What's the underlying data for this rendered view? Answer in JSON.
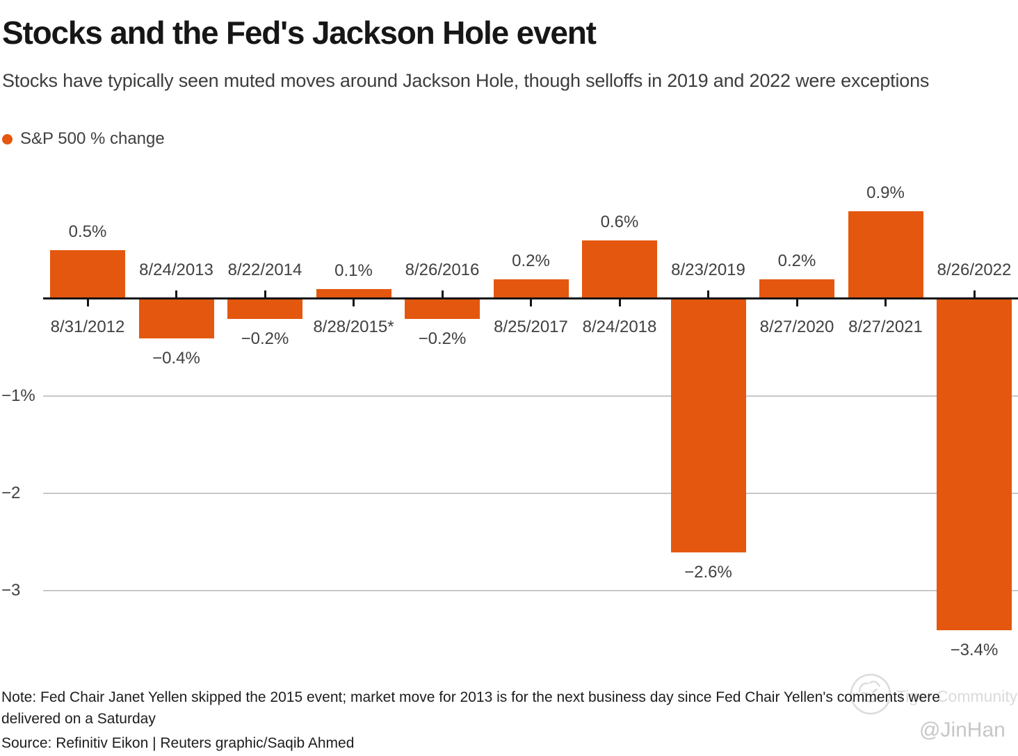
{
  "header": {
    "title": "Stocks and the Fed's Jackson Hole event",
    "subtitle": "Stocks have typically seen muted moves around Jackson Hole, though selloffs in 2019 and 2022 were exceptions"
  },
  "legend": {
    "label": "S&P 500 % change"
  },
  "colors": {
    "bar": "#E4570F",
    "axis": "#141414",
    "gridline": "#C8C8C8",
    "label": "#404040",
    "watermark": "#DBDBDB"
  },
  "chart_data": {
    "type": "bar",
    "title": "Stocks and the Fed's Jackson Hole event",
    "subtitle": "Stocks have typically seen muted moves around Jackson Hole, though selloffs in 2019 and 2022 were exceptions",
    "series_name": "S&P 500 % change",
    "categories": [
      "8/31/2012",
      "8/24/2013",
      "8/22/2014",
      "8/28/2015*",
      "8/26/2016",
      "8/25/2017",
      "8/24/2018",
      "8/23/2019",
      "8/27/2020",
      "8/27/2021",
      "8/26/2022"
    ],
    "values": [
      0.5,
      -0.4,
      -0.2,
      0.1,
      -0.2,
      0.2,
      0.6,
      -2.6,
      0.2,
      0.9,
      -3.4
    ],
    "value_labels": [
      "0.5%",
      "−0.4%",
      "−0.2%",
      "0.1%",
      "−0.2%",
      "0.2%",
      "0.6%",
      "−2.6%",
      "0.2%",
      "0.9%",
      "−3.4%"
    ],
    "xlabel": "",
    "ylabel": "S&P 500 % change",
    "ylim": [
      -3.6,
      1.0
    ],
    "grid": "horizontal",
    "legend_position": "top-left",
    "yticks": [
      {
        "value": -1,
        "label": "−1%"
      },
      {
        "value": -2,
        "label": "−2"
      },
      {
        "value": -3,
        "label": "−3"
      }
    ]
  },
  "footer": {
    "note_lines": [
      "Note: Fed Chair Janet Yellen skipped the 2015 event; market move for 2013 is for the next business day since Fed Chair Yellen's comments were",
      "delivered on a Saturday"
    ],
    "source": "Source: Refinitiv Eikon | Reuters graphic/Saqib Ahmed"
  },
  "watermark": {
    "community": "Tiger Community",
    "handle": "@JinHan"
  }
}
